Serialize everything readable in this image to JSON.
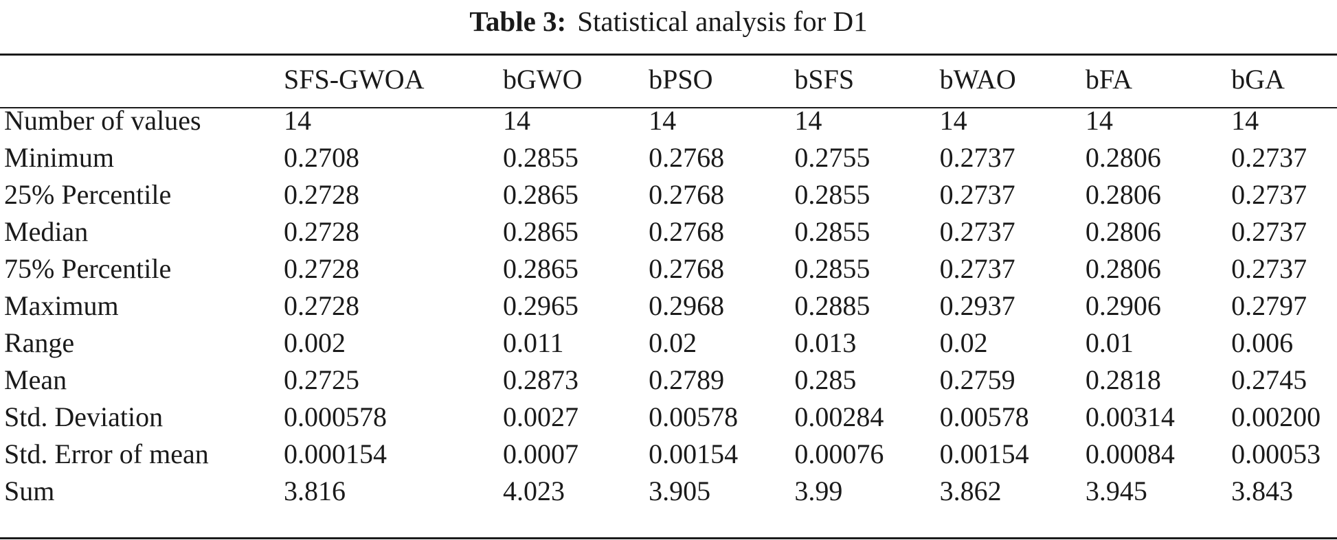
{
  "caption": {
    "label": "Table 3:",
    "title": "Statistical analysis for D1"
  },
  "table": {
    "columns": [
      "",
      "SFS-GWOA",
      "bGWO",
      "bPSO",
      "bSFS",
      "bWAO",
      "bFA",
      "bGA"
    ],
    "rows": [
      [
        "Number of values",
        "14",
        "14",
        "14",
        "14",
        "14",
        "14",
        "14"
      ],
      [
        "Minimum",
        "0.2708",
        "0.2855",
        "0.2768",
        "0.2755",
        "0.2737",
        "0.2806",
        "0.2737"
      ],
      [
        "25% Percentile",
        "0.2728",
        "0.2865",
        "0.2768",
        "0.2855",
        "0.2737",
        "0.2806",
        "0.2737"
      ],
      [
        "Median",
        "0.2728",
        "0.2865",
        "0.2768",
        "0.2855",
        "0.2737",
        "0.2806",
        "0.2737"
      ],
      [
        "75% Percentile",
        "0.2728",
        "0.2865",
        "0.2768",
        "0.2855",
        "0.2737",
        "0.2806",
        "0.2737"
      ],
      [
        "Maximum",
        "0.2728",
        "0.2965",
        "0.2968",
        "0.2885",
        "0.2937",
        "0.2906",
        "0.2797"
      ],
      [
        "Range",
        "0.002",
        "0.011",
        "0.02",
        "0.013",
        "0.02",
        "0.01",
        "0.006"
      ],
      [
        "Mean",
        "0.2725",
        "0.2873",
        "0.2789",
        "0.285",
        "0.2759",
        "0.2818",
        "0.2745"
      ],
      [
        "Std. Deviation",
        "0.000578",
        "0.0027",
        "0.00578",
        "0.00284",
        "0.00578",
        "0.00314",
        "0.00200"
      ],
      [
        "Std. Error of mean",
        "0.000154",
        "0.0007",
        "0.00154",
        "0.00076",
        "0.00154",
        "0.00084",
        "0.00053"
      ],
      [
        "Sum",
        "3.816",
        "4.023",
        "3.905",
        "3.99",
        "3.862",
        "3.945",
        "3.843"
      ]
    ]
  }
}
